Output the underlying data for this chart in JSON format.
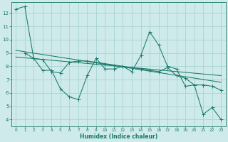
{
  "xlabel": "Humidex (Indice chaleur)",
  "background_color": "#ceeaea",
  "grid_color": "#a8d4d4",
  "line_color": "#1a7a6a",
  "xlim": [
    -0.5,
    23.5
  ],
  "ylim": [
    3.5,
    12.8
  ],
  "yticks": [
    4,
    5,
    6,
    7,
    8,
    9,
    10,
    11,
    12
  ],
  "xticks": [
    0,
    1,
    2,
    3,
    4,
    5,
    6,
    7,
    8,
    9,
    10,
    11,
    12,
    13,
    14,
    15,
    16,
    17,
    18,
    19,
    20,
    21,
    22,
    23
  ],
  "series1_x": [
    0,
    1,
    2,
    3,
    4,
    5,
    6,
    7,
    8,
    9,
    10,
    11,
    12,
    13,
    14,
    15,
    16,
    17,
    18,
    19,
    20,
    21,
    22,
    23
  ],
  "series1_y": [
    12.3,
    12.5,
    8.6,
    7.7,
    7.7,
    6.3,
    5.7,
    5.5,
    7.3,
    8.6,
    7.8,
    7.8,
    8.0,
    7.6,
    8.8,
    10.6,
    9.6,
    8.0,
    7.8,
    6.5,
    6.6,
    4.4,
    4.9,
    4.0
  ],
  "series2_x": [
    1,
    2,
    3,
    4,
    5,
    6,
    7,
    8,
    9,
    10,
    11,
    12,
    13,
    14,
    15,
    16,
    17,
    18,
    19,
    20,
    21,
    22,
    23
  ],
  "series2_y": [
    9.0,
    8.6,
    8.5,
    7.6,
    7.5,
    8.3,
    8.4,
    8.4,
    8.3,
    8.2,
    8.1,
    8.0,
    7.9,
    7.8,
    7.7,
    7.6,
    7.9,
    7.3,
    7.1,
    6.6,
    6.6,
    6.5,
    6.2
  ],
  "trend1_x": [
    0,
    23
  ],
  "trend1_y": [
    9.2,
    6.8
  ],
  "trend2_x": [
    0,
    23
  ],
  "trend2_y": [
    8.7,
    7.3
  ]
}
